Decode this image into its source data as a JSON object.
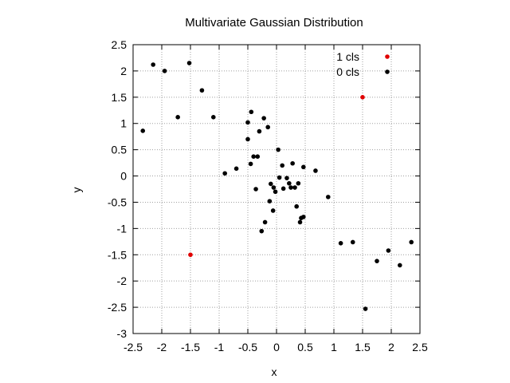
{
  "chart_data": {
    "type": "scatter",
    "title": "Multivariate Gaussian Distribution",
    "xlabel": "x",
    "ylabel": "y",
    "xlim": [
      -2.5,
      2.5
    ],
    "ylim": [
      -3,
      2.5
    ],
    "grid": true,
    "legend_position": "top-right",
    "xticks": [
      "-2.5",
      "-2",
      "-1.5",
      "-1",
      "-0.5",
      "0",
      "0.5",
      "1",
      "1.5",
      "2",
      "2.5"
    ],
    "yticks": [
      "-3",
      "-2.5",
      "-2",
      "-1.5",
      "-1",
      "-0.5",
      "0",
      "0.5",
      "1",
      "1.5",
      "2",
      "2.5"
    ],
    "series": [
      {
        "name": "1 cls",
        "color": "#e00000",
        "points": [
          [
            1.5,
            1.5
          ],
          [
            -1.5,
            -1.5
          ]
        ]
      },
      {
        "name": "0 cls",
        "color": "#000000",
        "points": [
          [
            -2.15,
            2.12
          ],
          [
            -1.95,
            2.0
          ],
          [
            -1.52,
            2.15
          ],
          [
            -1.3,
            1.63
          ],
          [
            -1.1,
            1.12
          ],
          [
            -1.72,
            1.12
          ],
          [
            -2.33,
            0.86
          ],
          [
            -0.9,
            0.05
          ],
          [
            -0.7,
            0.14
          ],
          [
            -0.5,
            0.7
          ],
          [
            -0.5,
            1.02
          ],
          [
            -0.44,
            1.22
          ],
          [
            -0.45,
            0.23
          ],
          [
            -0.4,
            0.37
          ],
          [
            -0.33,
            0.37
          ],
          [
            -0.3,
            0.85
          ],
          [
            -0.22,
            1.1
          ],
          [
            -0.15,
            0.93
          ],
          [
            -0.36,
            -0.25
          ],
          [
            -0.26,
            -1.05
          ],
          [
            -0.2,
            -0.88
          ],
          [
            -0.12,
            -0.48
          ],
          [
            -0.1,
            -0.15
          ],
          [
            -0.06,
            -0.66
          ],
          [
            -0.05,
            -0.22
          ],
          [
            -0.02,
            -0.3
          ],
          [
            0.03,
            0.5
          ],
          [
            0.05,
            -0.03
          ],
          [
            0.1,
            0.2
          ],
          [
            0.12,
            -0.24
          ],
          [
            0.18,
            -0.04
          ],
          [
            0.22,
            -0.14
          ],
          [
            0.25,
            -0.22
          ],
          [
            0.28,
            0.24
          ],
          [
            0.32,
            -0.22
          ],
          [
            0.35,
            -0.58
          ],
          [
            0.38,
            -0.14
          ],
          [
            0.41,
            -0.88
          ],
          [
            0.43,
            -0.8
          ],
          [
            0.47,
            -0.78
          ],
          [
            0.47,
            0.17
          ],
          [
            0.68,
            0.1
          ],
          [
            0.9,
            -0.4
          ],
          [
            1.12,
            -1.28
          ],
          [
            1.33,
            -1.26
          ],
          [
            1.55,
            -2.53
          ],
          [
            1.75,
            -1.62
          ],
          [
            1.95,
            -1.42
          ],
          [
            2.15,
            -1.7
          ],
          [
            2.35,
            -1.26
          ]
        ]
      }
    ]
  }
}
